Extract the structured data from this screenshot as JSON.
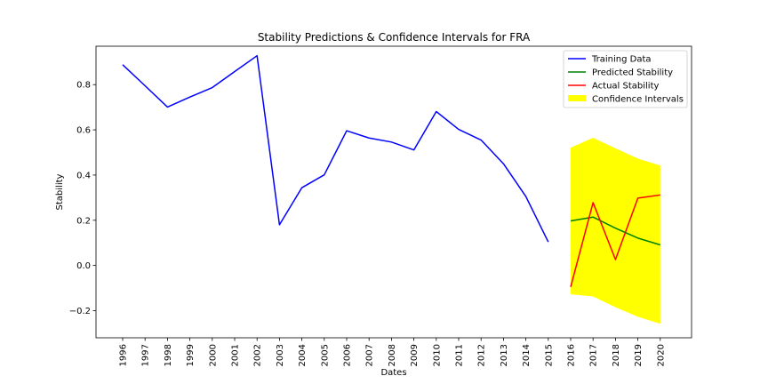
{
  "chart_data": {
    "type": "line",
    "title": "Stability Predictions & Confidence Intervals for FRA",
    "xlabel": "Dates",
    "ylabel": "Stability",
    "categories": [
      "1996",
      "1997",
      "1998",
      "1999",
      "2000",
      "2001",
      "2002",
      "2003",
      "2004",
      "2005",
      "2006",
      "2007",
      "2008",
      "2009",
      "2010",
      "2011",
      "2012",
      "2013",
      "2014",
      "2015",
      "2016",
      "2017",
      "2018",
      "2019",
      "2020"
    ],
    "yticks": [
      -0.2,
      0.0,
      0.2,
      0.4,
      0.6,
      0.8
    ],
    "yticklabels": [
      "−0.2",
      "0.0",
      "0.2",
      "0.4",
      "0.6",
      "0.8"
    ],
    "ylim": [
      -0.32,
      0.97
    ],
    "grid": false,
    "legend_position": "top-right",
    "series": [
      {
        "name": "Training Data",
        "color": "#0000ff",
        "x": [
          "1996",
          "1997",
          "1998",
          "1999",
          "2000",
          "2001",
          "2002",
          "2003",
          "2004",
          "2005",
          "2006",
          "2007",
          "2008",
          "2009",
          "2010",
          "2011",
          "2012",
          "2013",
          "2014",
          "2015"
        ],
        "values": [
          0.888,
          0.795,
          0.701,
          0.745,
          0.787,
          0.858,
          0.928,
          0.18,
          0.344,
          0.401,
          0.596,
          0.564,
          0.546,
          0.511,
          0.681,
          0.602,
          0.555,
          0.45,
          0.305,
          0.104
        ]
      },
      {
        "name": "Predicted Stability",
        "color": "#008000",
        "x": [
          "2016",
          "2017",
          "2018",
          "2019",
          "2020"
        ],
        "values": [
          0.197,
          0.214,
          0.165,
          0.121,
          0.091
        ]
      },
      {
        "name": "Actual Stability",
        "color": "#ff0000",
        "x": [
          "2016",
          "2017",
          "2018",
          "2019",
          "2020"
        ],
        "values": [
          -0.095,
          0.278,
          0.026,
          0.298,
          0.312
        ]
      }
    ],
    "confidence_interval": {
      "name": "Confidence Intervals",
      "color": "#ffff00",
      "x": [
        "2016",
        "2017",
        "2018",
        "2019",
        "2020"
      ],
      "upper": [
        0.521,
        0.565,
        0.518,
        0.473,
        0.442
      ],
      "lower": [
        -0.128,
        -0.137,
        -0.185,
        -0.227,
        -0.258
      ]
    }
  }
}
